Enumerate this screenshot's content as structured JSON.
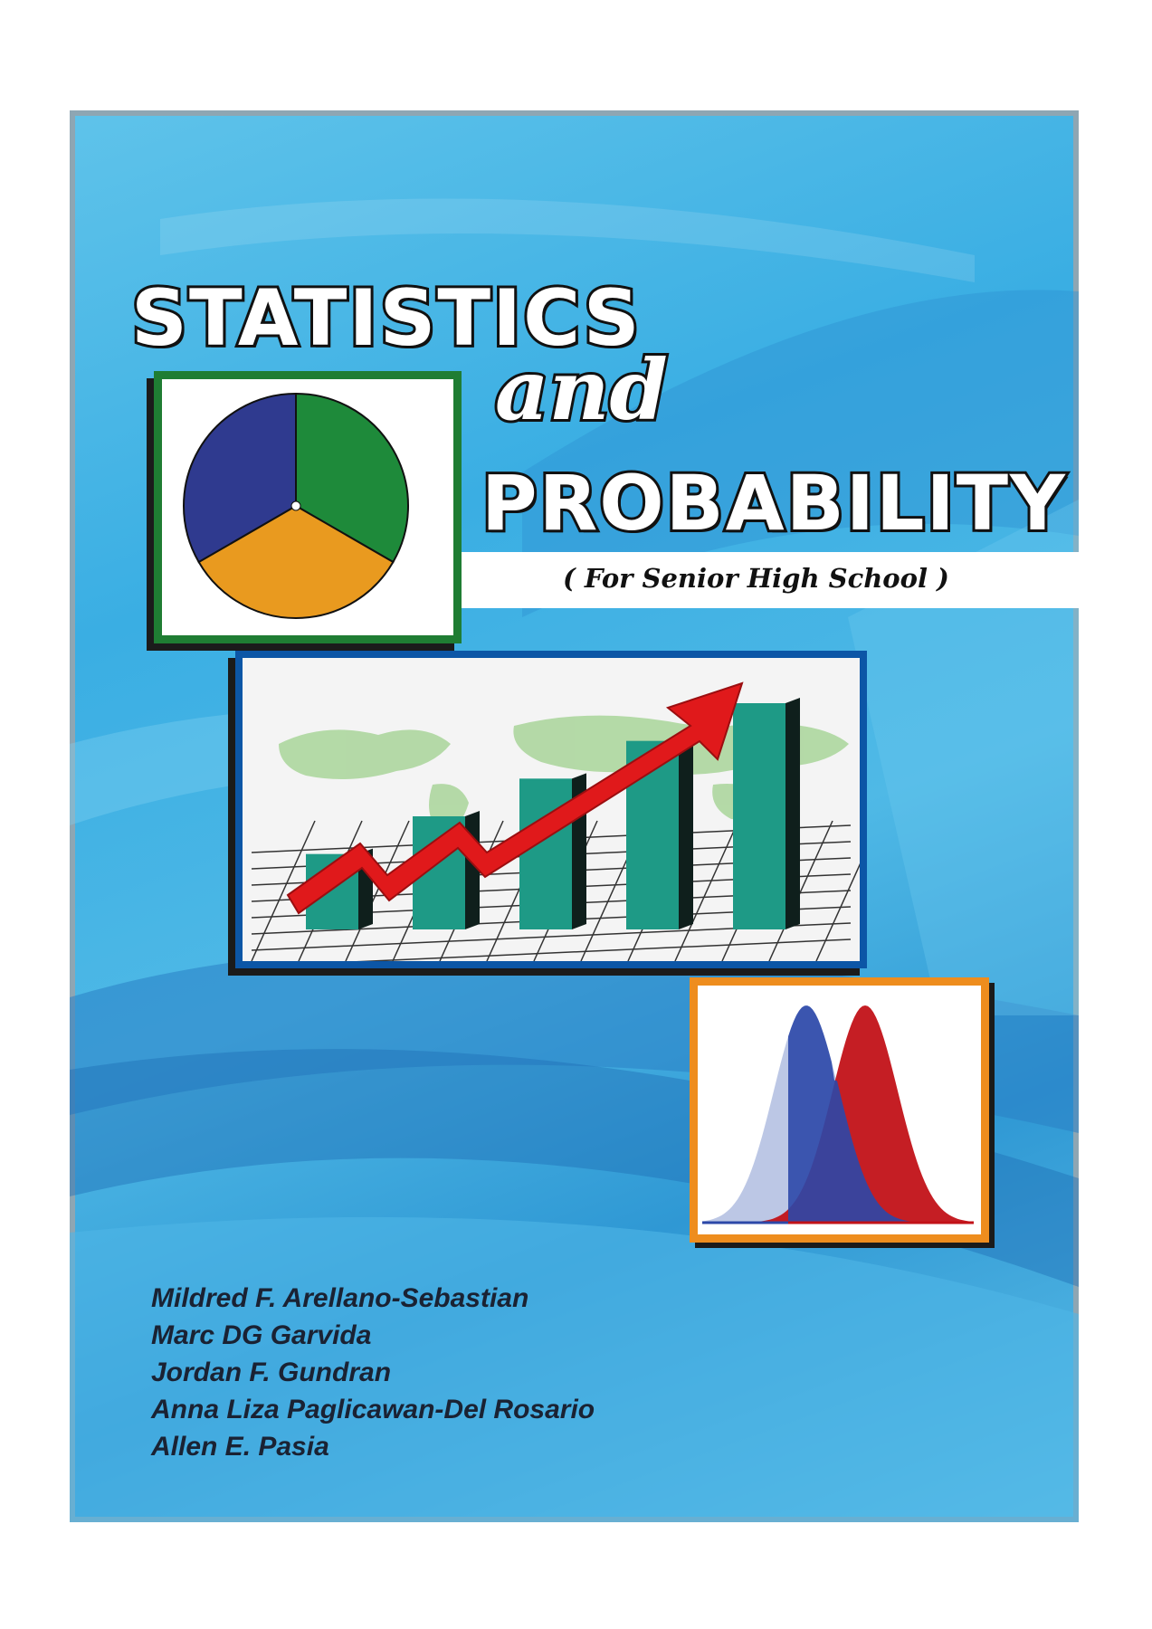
{
  "book": {
    "title_line1": "STATISTICS",
    "title_line2": "and",
    "title_line3": "PROBABILITY",
    "subtitle": "( For Senior High School )",
    "authors": [
      "Mildred F. Arellano-Sebastian",
      "Marc DG Garvida",
      "Jordan F. Gundran",
      "Anna Liza Paglicawan-Del Rosario",
      "Allen E. Pasia"
    ]
  },
  "colors": {
    "cover_blue": "#3aaee3",
    "pie_frame": "#1f7d33",
    "bar_frame": "#0c56a6",
    "dist_frame": "#ee8d1e",
    "pie_slices": [
      "#2f3a8f",
      "#1e8a3a",
      "#e99a1f"
    ],
    "bars": "#1e9a86",
    "arrow": "#e0191b",
    "curve_left": "#b8c4e4",
    "curve_mid": "#2c48a8",
    "curve_right": "#c21218"
  },
  "illustrations": {
    "pie_chart": {
      "slices": [
        0.3333,
        0.3333,
        0.3334
      ]
    },
    "bar_chart": {
      "bar_values": [
        2,
        3,
        4,
        5,
        6
      ],
      "trend": "rising"
    },
    "distribution": {
      "curves": 2
    }
  }
}
